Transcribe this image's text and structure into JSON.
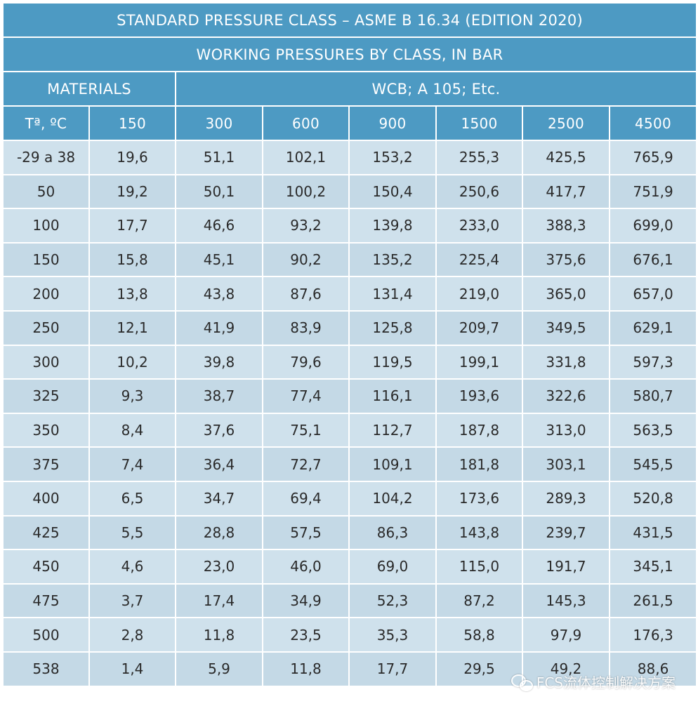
{
  "title": "STANDARD PRESSURE CLASS – ASME B 16.34 (EDITION 2020)",
  "subtitle": "WORKING PRESSURES BY CLASS, IN BAR",
  "materials_label": "MATERIALS",
  "material_value": "WCB; A 105; Etc.",
  "columns": [
    "Tª, ºC",
    "150",
    "300",
    "600",
    "900",
    "1500",
    "2500",
    "4500"
  ],
  "rows": [
    [
      "-29 a 38",
      "19,6",
      "51,1",
      "102,1",
      "153,2",
      "255,3",
      "425,5",
      "765,9"
    ],
    [
      "50",
      "19,2",
      "50,1",
      "100,2",
      "150,4",
      "250,6",
      "417,7",
      "751,9"
    ],
    [
      "100",
      "17,7",
      "46,6",
      "93,2",
      "139,8",
      "233,0",
      "388,3",
      "699,0"
    ],
    [
      "150",
      "15,8",
      "45,1",
      "90,2",
      "135,2",
      "225,4",
      "375,6",
      "676,1"
    ],
    [
      "200",
      "13,8",
      "43,8",
      "87,6",
      "131,4",
      "219,0",
      "365,0",
      "657,0"
    ],
    [
      "250",
      "12,1",
      "41,9",
      "83,9",
      "125,8",
      "209,7",
      "349,5",
      "629,1"
    ],
    [
      "300",
      "10,2",
      "39,8",
      "79,6",
      "119,5",
      "199,1",
      "331,8",
      "597,3"
    ],
    [
      "325",
      "9,3",
      "38,7",
      "77,4",
      "116,1",
      "193,6",
      "322,6",
      "580,7"
    ],
    [
      "350",
      "8,4",
      "37,6",
      "75,1",
      "112,7",
      "187,8",
      "313,0",
      "563,5"
    ],
    [
      "375",
      "7,4",
      "36,4",
      "72,7",
      "109,1",
      "181,8",
      "303,1",
      "545,5"
    ],
    [
      "400",
      "6,5",
      "34,7",
      "69,4",
      "104,2",
      "173,6",
      "289,3",
      "520,8"
    ],
    [
      "425",
      "5,5",
      "28,8",
      "57,5",
      "86,3",
      "143,8",
      "239,7",
      "431,5"
    ],
    [
      "450",
      "4,6",
      "23,0",
      "46,0",
      "69,0",
      "115,0",
      "191,7",
      "345,1"
    ],
    [
      "475",
      "3,7",
      "17,4",
      "34,9",
      "52,3",
      "87,2",
      "145,3",
      "261,5"
    ],
    [
      "500",
      "2,8",
      "11,8",
      "23,5",
      "35,3",
      "58,8",
      "97,9",
      "176,3"
    ],
    [
      "538",
      "1,4",
      "5,9",
      "11,8",
      "17,7",
      "29,5",
      "49,2",
      "88,6"
    ]
  ],
  "watermark": {
    "icon": "wechat-icon",
    "text": "FCS流体控制解决方案"
  },
  "colors": {
    "header_bg": "#4d9ac3",
    "row_bg": "#cfe1ec",
    "row_alt_bg": "#c4d9e6"
  }
}
